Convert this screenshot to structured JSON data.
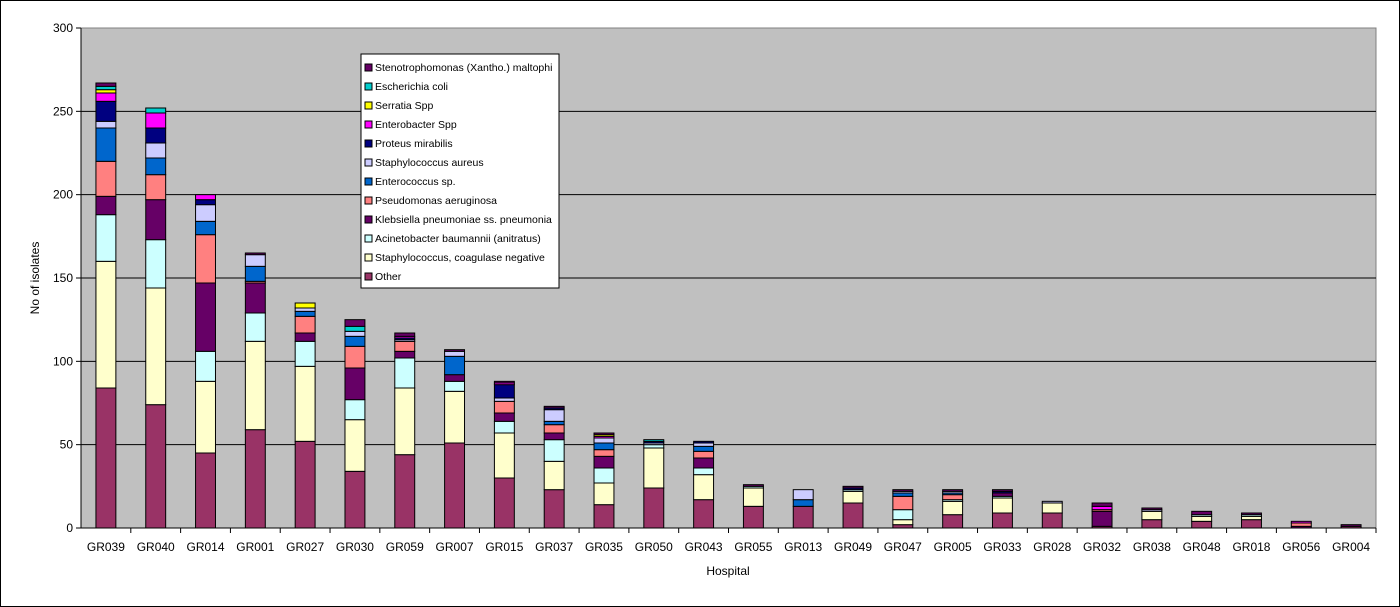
{
  "chart_data": {
    "type": "bar",
    "stacked": true,
    "title": "",
    "xlabel": "Hospital",
    "ylabel": "No of isolates",
    "ylim": [
      0,
      300
    ],
    "yticks": [
      0,
      50,
      100,
      150,
      200,
      250,
      300
    ],
    "grid": "horizontal major gridlines",
    "legend_position": "top-center inside plot",
    "categories": [
      "GR039",
      "GR040",
      "GR014",
      "GR001",
      "GR027",
      "GR030",
      "GR059",
      "GR007",
      "GR015",
      "GR037",
      "GR035",
      "GR050",
      "GR043",
      "GR055",
      "GR013",
      "GR049",
      "GR047",
      "GR005",
      "GR033",
      "GR028",
      "GR032",
      "GR038",
      "GR048",
      "GR018",
      "GR056",
      "GR004"
    ],
    "series": [
      {
        "name": "Other",
        "color": "#993366",
        "values": [
          84,
          74,
          45,
          59,
          52,
          34,
          44,
          51,
          30,
          23,
          14,
          24,
          17,
          13,
          13,
          15,
          2,
          8,
          9,
          9,
          1,
          5,
          4,
          5,
          0,
          1
        ]
      },
      {
        "name": "Staphylococcus, coagulase negative",
        "color": "#FFFFCC",
        "values": [
          76,
          70,
          43,
          53,
          45,
          31,
          40,
          31,
          27,
          17,
          13,
          24,
          15,
          11,
          0,
          7,
          3,
          8,
          9,
          6,
          0,
          5,
          3,
          2,
          0,
          0
        ]
      },
      {
        "name": "Acinetobacter baumannii (anitratus)",
        "color": "#CCFFFF",
        "values": [
          28,
          29,
          18,
          17,
          15,
          12,
          18,
          6,
          7,
          13,
          9,
          2,
          4,
          1,
          0,
          1,
          6,
          1,
          1,
          0,
          0,
          0,
          1,
          1,
          0,
          0
        ]
      },
      {
        "name": "Klebsiella pneumoniae ss. pneumonia",
        "color": "#660066",
        "values": [
          11,
          24,
          41,
          18,
          5,
          19,
          4,
          4,
          5,
          4,
          7,
          0,
          6,
          0,
          0,
          0,
          0,
          0,
          2,
          0,
          9,
          0,
          0,
          0,
          1,
          1
        ]
      },
      {
        "name": "Pseudomonas aeruginosa",
        "color": "#FF8080",
        "values": [
          21,
          15,
          29,
          1,
          10,
          13,
          6,
          0,
          7,
          5,
          4,
          0,
          4,
          0,
          0,
          0,
          8,
          3,
          0,
          0,
          1,
          0,
          0,
          0,
          2,
          0
        ]
      },
      {
        "name": "Enterococcus sp.",
        "color": "#0066CC",
        "values": [
          20,
          10,
          8,
          9,
          3,
          6,
          0,
          11,
          0,
          2,
          4,
          0,
          3,
          0,
          4,
          0,
          2,
          1,
          0,
          0,
          0,
          0,
          0,
          0,
          0,
          0
        ]
      },
      {
        "name": "Staphylococcus aureus",
        "color": "#CCCCFF",
        "values": [
          4,
          9,
          10,
          7,
          2,
          3,
          1,
          3,
          2,
          7,
          3,
          1,
          2,
          0,
          6,
          0,
          1,
          1,
          0,
          1,
          0,
          1,
          0,
          0,
          0,
          0
        ]
      },
      {
        "name": "Proteus mirabilis",
        "color": "#000080",
        "values": [
          12,
          9,
          3,
          0,
          0,
          0,
          1,
          0,
          8,
          1,
          0,
          1,
          1,
          0,
          0,
          1,
          0,
          0,
          1,
          0,
          0,
          0,
          0,
          0,
          0,
          0
        ]
      },
      {
        "name": "Enterobacter Spp",
        "color": "#FF00FF",
        "values": [
          5,
          9,
          3,
          0,
          0,
          0,
          1,
          0,
          1,
          0,
          1,
          0,
          0,
          0,
          0,
          0,
          0,
          0,
          0,
          0,
          2,
          0,
          0,
          0,
          1,
          0
        ]
      },
      {
        "name": "Serratia Spp",
        "color": "#FFFF00",
        "values": [
          2,
          0,
          0,
          0,
          3,
          0,
          0,
          0,
          0,
          0,
          1,
          0,
          0,
          0,
          0,
          0,
          0,
          0,
          0,
          0,
          0,
          0,
          0,
          0,
          0,
          0
        ]
      },
      {
        "name": "Escherichia coli",
        "color": "#00CCCC",
        "values": [
          2,
          3,
          0,
          0,
          0,
          3,
          0,
          0,
          0,
          0,
          0,
          1,
          0,
          0,
          0,
          0,
          0,
          0,
          0,
          0,
          0,
          0,
          0,
          0,
          0,
          0
        ]
      },
      {
        "name": "Stenotrophomonas (Xantho.) maltophi",
        "color": "#660066",
        "values": [
          2,
          0,
          0,
          1,
          0,
          4,
          2,
          1,
          1,
          1,
          1,
          0,
          0,
          1,
          0,
          1,
          1,
          1,
          1,
          0,
          2,
          1,
          2,
          1,
          0,
          0
        ]
      }
    ]
  }
}
